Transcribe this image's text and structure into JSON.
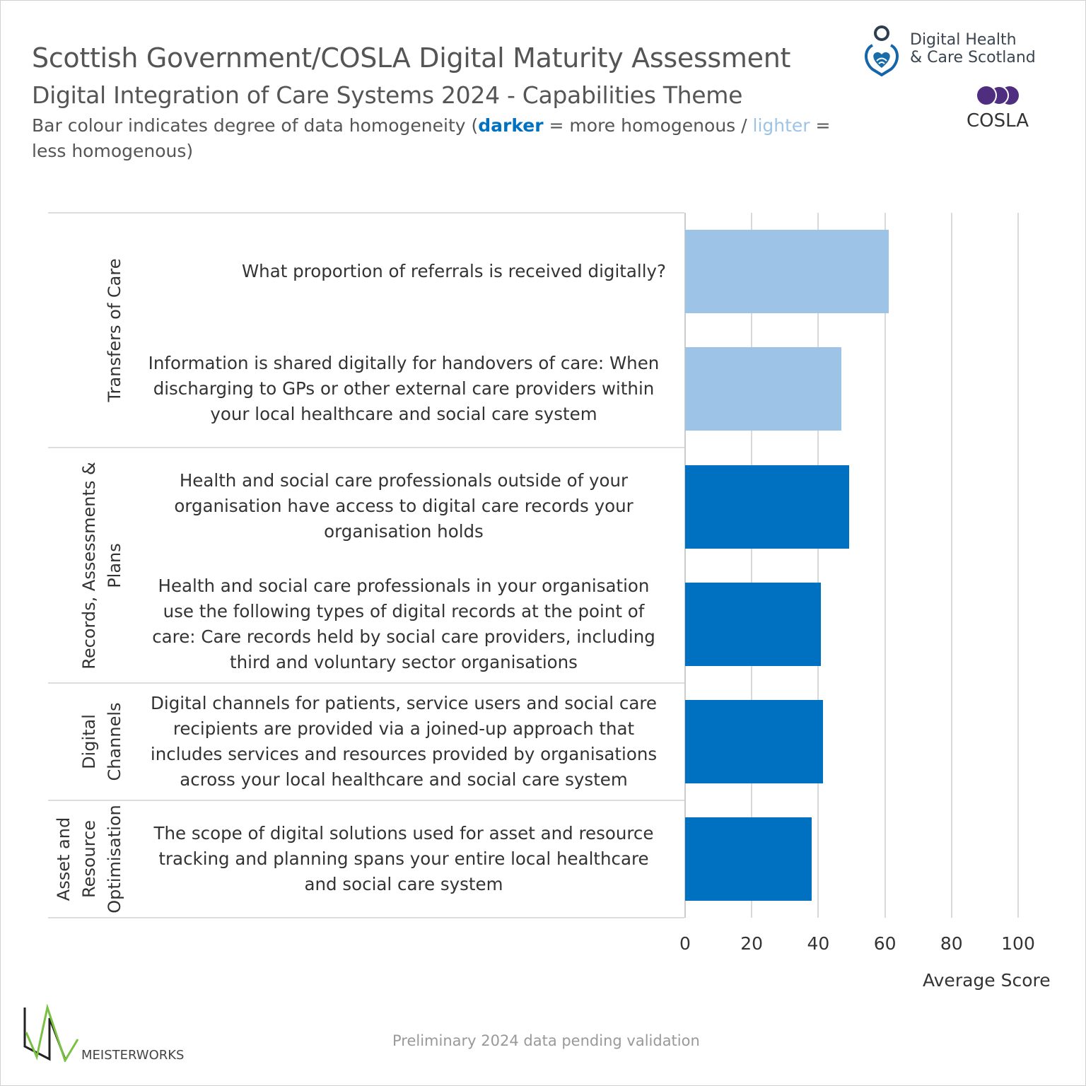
{
  "header": {
    "title": "Scottish Government/COSLA Digital Maturity Assessment",
    "subtitle": "Digital Integration of Care Systems 2024 - Capabilities Theme",
    "note_prefix": "Bar colour indicates degree of data homogeneity (",
    "note_dark": "darker",
    "note_mid": " = more homogenous / ",
    "note_light": "lighter",
    "note_suffix": " = less homogenous)"
  },
  "logos": {
    "dhcs_line1": "Digital Health",
    "dhcs_line2": "& Care Scotland",
    "cosla": "COSLA",
    "meisterworks": "MEISTERWORKS"
  },
  "footer": "Preliminary 2024 data pending validation",
  "colors": {
    "dark": "#0070c0",
    "light": "#9dc3e6",
    "grid": "#d9d9d9"
  },
  "chart_data": {
    "type": "bar",
    "orientation": "horizontal",
    "xlabel": "Average Score",
    "xlim": [
      0,
      100
    ],
    "xticks": [
      "0",
      "20",
      "40",
      "60",
      "80",
      "100"
    ],
    "grid": true,
    "groups": [
      {
        "name": "Transfers of Care",
        "items": [
          0,
          1
        ]
      },
      {
        "name": "Records, Assessments & Plans",
        "items": [
          2,
          3
        ]
      },
      {
        "name": "Digital Channels",
        "items": [
          4
        ]
      },
      {
        "name": "Asset and Resource Optimisation",
        "items": [
          5
        ]
      }
    ],
    "categories": [
      "What proportion of referrals is received digitally?",
      "Information is shared digitally for handovers of care: When discharging to GPs or other external care providers within your local healthcare and social care system",
      "Health and social care professionals outside of your organisation have access to digital care records your organisation holds",
      "Health and social care professionals in your organisation use the following types of digital records at the point of care: Care records held by social care providers, including third and voluntary sector organisations",
      "Digital channels for patients, service users and social care recipients are provided via a joined-up approach that includes services and resources provided by organisations across your local healthcare and social care system",
      "The scope of digital solutions used for asset and resource tracking and planning spans your entire local healthcare and social care system"
    ],
    "values": [
      61.1,
      47.0,
      49.3,
      40.7,
      41.4,
      38.1
    ],
    "homogeneity": [
      "lighter",
      "lighter",
      "darker",
      "darker",
      "darker",
      "darker"
    ]
  }
}
